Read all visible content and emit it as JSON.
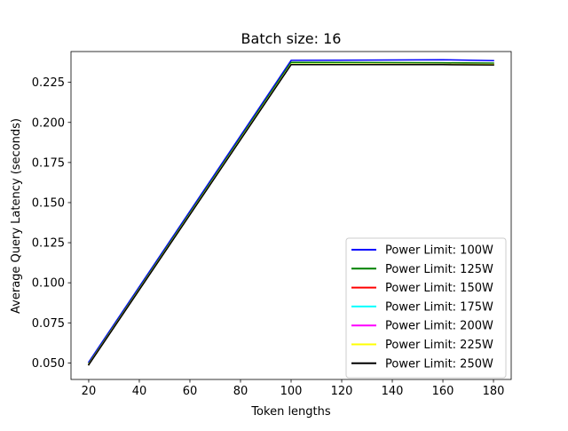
{
  "chart_data": {
    "type": "line",
    "title": "Batch size: 16",
    "xlabel": "Token lengths",
    "ylabel": "Average Query Latency (seconds)",
    "x": [
      20,
      100,
      160,
      180
    ],
    "xlim": [
      13,
      187
    ],
    "ylim": [
      0.0397,
      0.2442
    ],
    "xticks": [
      20,
      40,
      60,
      80,
      100,
      120,
      140,
      160,
      180
    ],
    "yticks": [
      0.05,
      0.075,
      0.1,
      0.125,
      0.15,
      0.175,
      0.2,
      0.225
    ],
    "ytick_labels": [
      "0.050",
      "0.075",
      "0.100",
      "0.125",
      "0.150",
      "0.175",
      "0.200",
      "0.225"
    ],
    "grid": false,
    "legend_position": "bottom-right",
    "series": [
      {
        "name": "Power Limit: 100W",
        "color": "#0000ff",
        "values": [
          0.0505,
          0.2387,
          0.2391,
          0.2385
        ]
      },
      {
        "name": "Power Limit: 125W",
        "color": "#008000",
        "values": [
          0.0495,
          0.2375,
          0.2372,
          0.237
        ]
      },
      {
        "name": "Power Limit: 150W",
        "color": "#ff0000",
        "values": [
          0.049,
          0.2363,
          0.2362,
          0.236
        ]
      },
      {
        "name": "Power Limit: 175W",
        "color": "#00ffff",
        "values": [
          0.049,
          0.2364,
          0.2362,
          0.2361
        ]
      },
      {
        "name": "Power Limit: 200W",
        "color": "#ff00ff",
        "values": [
          0.049,
          0.2363,
          0.2362,
          0.2361
        ]
      },
      {
        "name": "Power Limit: 225W",
        "color": "#ffff00",
        "values": [
          0.049,
          0.2363,
          0.2362,
          0.2361
        ]
      },
      {
        "name": "Power Limit: 250W",
        "color": "#000000",
        "values": [
          0.0488,
          0.236,
          0.236,
          0.2358
        ]
      }
    ]
  }
}
